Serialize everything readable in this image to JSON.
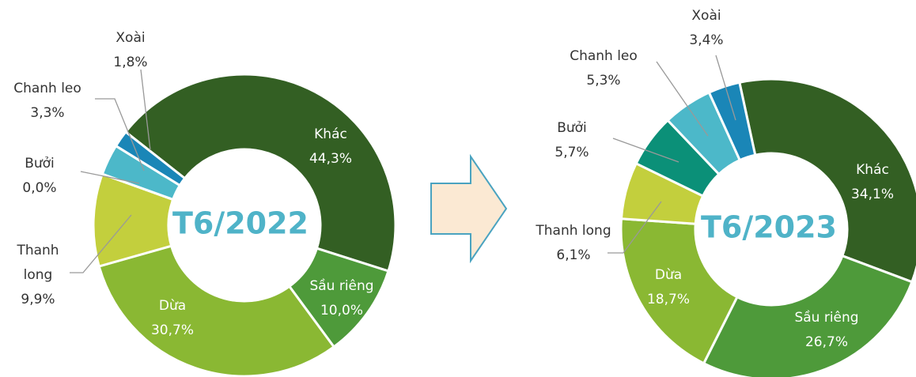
{
  "chart_data": [
    {
      "type": "donut",
      "title": "T6/2022",
      "categories": [
        "Khác",
        "Sầu riêng",
        "Dừa",
        "Thanh long",
        "Bưởi",
        "Chanh leo",
        "Xoài"
      ],
      "values": [
        44.3,
        10.0,
        30.7,
        9.9,
        0.0,
        3.3,
        1.8
      ],
      "value_labels": [
        "44,3%",
        "10,0%",
        "30,7%",
        "9,9%",
        "0,0%",
        "3,3%",
        "1,8%"
      ],
      "colors": [
        "#335f23",
        "#4e9a3a",
        "#8ab833",
        "#c3cf3d",
        "#0b9078",
        "#4cb8c9",
        "#1a86b7"
      ]
    },
    {
      "type": "donut",
      "title": "T6/2023",
      "categories": [
        "Khác",
        "Sầu riêng",
        "Dừa",
        "Thanh long",
        "Bưởi",
        "Chanh leo",
        "Xoài"
      ],
      "values": [
        34.1,
        26.7,
        18.7,
        6.1,
        5.7,
        5.3,
        3.4
      ],
      "value_labels": [
        "34,1%",
        "26,7%",
        "18,7%",
        "6,1%",
        "5,7%",
        "5,3%",
        "3,4%"
      ],
      "colors": [
        "#335f23",
        "#4e9a3a",
        "#8ab833",
        "#c3cf3d",
        "#0b9078",
        "#4cb8c9",
        "#1a86b7"
      ]
    }
  ]
}
